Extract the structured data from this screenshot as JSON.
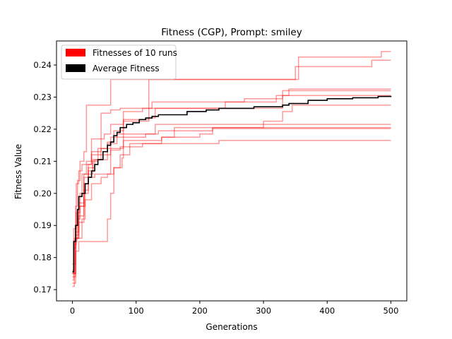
{
  "chart_data": {
    "type": "line",
    "title": "Fitness (CGP), Prompt: smiley",
    "xlabel": "Generations",
    "ylabel": "Fitness Value",
    "xlim": [
      -25,
      525
    ],
    "ylim": [
      0.1665,
      0.2475
    ],
    "xticks": [
      0,
      100,
      200,
      300,
      400,
      500
    ],
    "yticks": [
      0.17,
      0.18,
      0.19,
      0.2,
      0.21,
      0.22,
      0.23,
      0.24
    ],
    "xtick_labels": [
      "0",
      "100",
      "200",
      "300",
      "400",
      "500"
    ],
    "ytick_labels": [
      "0.17",
      "0.18",
      "0.19",
      "0.20",
      "0.21",
      "0.22",
      "0.23",
      "0.24"
    ],
    "grid": false,
    "legend": {
      "placement": "top-left",
      "entries": [
        {
          "label": "Fitnesses of 10 runs",
          "color": "#ff0000"
        },
        {
          "label": "Average Fitness",
          "color": "#000000"
        }
      ]
    },
    "colors": {
      "runs": "#ff0000",
      "average": "#000000",
      "runs_alpha": 0.4
    },
    "series": [
      {
        "group": "runs",
        "points": [
          [
            0,
            0.173
          ],
          [
            2,
            0.183
          ],
          [
            5,
            0.196
          ],
          [
            8,
            0.204
          ],
          [
            12,
            0.21
          ],
          [
            18,
            0.213
          ],
          [
            22,
            0.2275
          ],
          [
            60,
            0.2275
          ],
          [
            60,
            0.2355
          ],
          [
            350,
            0.2355
          ],
          [
            350,
            0.2395
          ],
          [
            470,
            0.2395
          ],
          [
            470,
            0.2415
          ],
          [
            500,
            0.2415
          ]
        ]
      },
      {
        "group": "runs",
        "points": [
          [
            0,
            0.171
          ],
          [
            3,
            0.185
          ],
          [
            7,
            0.186
          ],
          [
            12,
            0.186
          ],
          [
            15,
            0.192
          ],
          [
            20,
            0.2
          ],
          [
            25,
            0.206
          ],
          [
            32,
            0.21
          ],
          [
            40,
            0.214
          ],
          [
            55,
            0.216
          ],
          [
            65,
            0.2195
          ],
          [
            75,
            0.2195
          ],
          [
            80,
            0.2225
          ],
          [
            120,
            0.2225
          ],
          [
            120,
            0.2355
          ],
          [
            355,
            0.2355
          ],
          [
            355,
            0.2425
          ],
          [
            485,
            0.2425
          ],
          [
            485,
            0.2442
          ],
          [
            500,
            0.2442
          ]
        ]
      },
      {
        "group": "runs",
        "points": [
          [
            0,
            0.175
          ],
          [
            3,
            0.186
          ],
          [
            8,
            0.192
          ],
          [
            12,
            0.2
          ],
          [
            15,
            0.206
          ],
          [
            22,
            0.21
          ],
          [
            30,
            0.213
          ],
          [
            45,
            0.225
          ],
          [
            60,
            0.226
          ],
          [
            70,
            0.226
          ],
          [
            75,
            0.2265
          ],
          [
            120,
            0.2265
          ],
          [
            125,
            0.2285
          ],
          [
            250,
            0.2285
          ],
          [
            270,
            0.2295
          ],
          [
            320,
            0.2295
          ],
          [
            330,
            0.232
          ],
          [
            500,
            0.232
          ]
        ]
      },
      {
        "group": "runs",
        "points": [
          [
            0,
            0.176
          ],
          [
            2,
            0.184
          ],
          [
            6,
            0.203
          ],
          [
            10,
            0.207
          ],
          [
            15,
            0.209
          ],
          [
            30,
            0.217
          ],
          [
            50,
            0.2185
          ],
          [
            60,
            0.2215
          ],
          [
            80,
            0.223
          ],
          [
            120,
            0.2235
          ],
          [
            130,
            0.2265
          ],
          [
            230,
            0.2265
          ],
          [
            240,
            0.2285
          ],
          [
            300,
            0.2285
          ],
          [
            320,
            0.2305
          ],
          [
            340,
            0.2315
          ],
          [
            340,
            0.2325
          ],
          [
            500,
            0.2325
          ]
        ]
      },
      {
        "group": "runs",
        "points": [
          [
            0,
            0.174
          ],
          [
            5,
            0.182
          ],
          [
            10,
            0.185
          ],
          [
            15,
            0.185
          ],
          [
            25,
            0.185
          ],
          [
            35,
            0.185
          ],
          [
            50,
            0.185
          ],
          [
            55,
            0.192
          ],
          [
            60,
            0.2
          ],
          [
            65,
            0.208
          ],
          [
            75,
            0.212
          ],
          [
            90,
            0.2155
          ],
          [
            110,
            0.2155
          ],
          [
            140,
            0.2175
          ],
          [
            160,
            0.2205
          ],
          [
            280,
            0.2205
          ],
          [
            300,
            0.2225
          ],
          [
            330,
            0.2255
          ],
          [
            345,
            0.2275
          ],
          [
            500,
            0.2275
          ]
        ]
      },
      {
        "group": "runs",
        "points": [
          [
            0,
            0.178
          ],
          [
            5,
            0.188
          ],
          [
            10,
            0.197
          ],
          [
            18,
            0.205
          ],
          [
            25,
            0.209
          ],
          [
            30,
            0.212
          ],
          [
            45,
            0.214
          ],
          [
            80,
            0.2165
          ],
          [
            120,
            0.2165
          ],
          [
            140,
            0.2175
          ],
          [
            200,
            0.2185
          ],
          [
            220,
            0.2205
          ],
          [
            500,
            0.2205
          ]
        ]
      },
      {
        "group": "runs",
        "points": [
          [
            0,
            0.175
          ],
          [
            5,
            0.187
          ],
          [
            10,
            0.191
          ],
          [
            18,
            0.206
          ],
          [
            25,
            0.208
          ],
          [
            35,
            0.2105
          ],
          [
            55,
            0.2155
          ],
          [
            70,
            0.2175
          ],
          [
            100,
            0.2175
          ],
          [
            115,
            0.2185
          ],
          [
            135,
            0.2195
          ],
          [
            160,
            0.2195
          ],
          [
            200,
            0.2195
          ],
          [
            220,
            0.2202
          ],
          [
            500,
            0.2202
          ]
        ]
      },
      {
        "group": "runs",
        "points": [
          [
            0,
            0.175
          ],
          [
            5,
            0.186
          ],
          [
            10,
            0.196
          ],
          [
            18,
            0.203
          ],
          [
            25,
            0.207
          ],
          [
            32,
            0.2105
          ],
          [
            45,
            0.212
          ],
          [
            60,
            0.2135
          ],
          [
            75,
            0.2145
          ],
          [
            100,
            0.2145
          ],
          [
            110,
            0.2155
          ],
          [
            210,
            0.2155
          ],
          [
            230,
            0.2165
          ],
          [
            500,
            0.2165
          ]
        ]
      },
      {
        "group": "runs",
        "points": [
          [
            0,
            0.172
          ],
          [
            5,
            0.186
          ],
          [
            10,
            0.193
          ],
          [
            18,
            0.201
          ],
          [
            25,
            0.205
          ],
          [
            35,
            0.206
          ],
          [
            50,
            0.206
          ],
          [
            60,
            0.2175
          ],
          [
            70,
            0.2185
          ],
          [
            80,
            0.2255
          ],
          [
            100,
            0.2255
          ],
          [
            110,
            0.2265
          ],
          [
            200,
            0.2265
          ],
          [
            260,
            0.2265
          ],
          [
            330,
            0.2305
          ],
          [
            500,
            0.2305
          ]
        ]
      },
      {
        "group": "runs",
        "points": [
          [
            0,
            0.176
          ],
          [
            2,
            0.189
          ],
          [
            6,
            0.194
          ],
          [
            12,
            0.196
          ],
          [
            20,
            0.198
          ],
          [
            30,
            0.203
          ],
          [
            45,
            0.205
          ],
          [
            55,
            0.206
          ],
          [
            65,
            0.208
          ],
          [
            70,
            0.208
          ],
          [
            78,
            0.211
          ],
          [
            80,
            0.2185
          ],
          [
            110,
            0.2185
          ],
          [
            130,
            0.2215
          ],
          [
            230,
            0.2215
          ],
          [
            500,
            0.2215
          ]
        ]
      },
      {
        "group": "average",
        "points": [
          [
            0,
            0.1755
          ],
          [
            2,
            0.185
          ],
          [
            5,
            0.19
          ],
          [
            8,
            0.195
          ],
          [
            10,
            0.199
          ],
          [
            15,
            0.2
          ],
          [
            20,
            0.203
          ],
          [
            25,
            0.205
          ],
          [
            30,
            0.207
          ],
          [
            35,
            0.209
          ],
          [
            40,
            0.2105
          ],
          [
            48,
            0.213
          ],
          [
            55,
            0.215
          ],
          [
            60,
            0.216
          ],
          [
            65,
            0.218
          ],
          [
            70,
            0.219
          ],
          [
            75,
            0.2205
          ],
          [
            85,
            0.2215
          ],
          [
            95,
            0.222
          ],
          [
            105,
            0.223
          ],
          [
            115,
            0.2235
          ],
          [
            125,
            0.224
          ],
          [
            135,
            0.2245
          ],
          [
            160,
            0.2245
          ],
          [
            180,
            0.2255
          ],
          [
            210,
            0.226
          ],
          [
            230,
            0.2265
          ],
          [
            270,
            0.2265
          ],
          [
            285,
            0.227
          ],
          [
            330,
            0.2275
          ],
          [
            340,
            0.228
          ],
          [
            360,
            0.228
          ],
          [
            370,
            0.229
          ],
          [
            400,
            0.2295
          ],
          [
            440,
            0.2298
          ],
          [
            480,
            0.2302
          ],
          [
            500,
            0.2304
          ]
        ]
      }
    ]
  }
}
